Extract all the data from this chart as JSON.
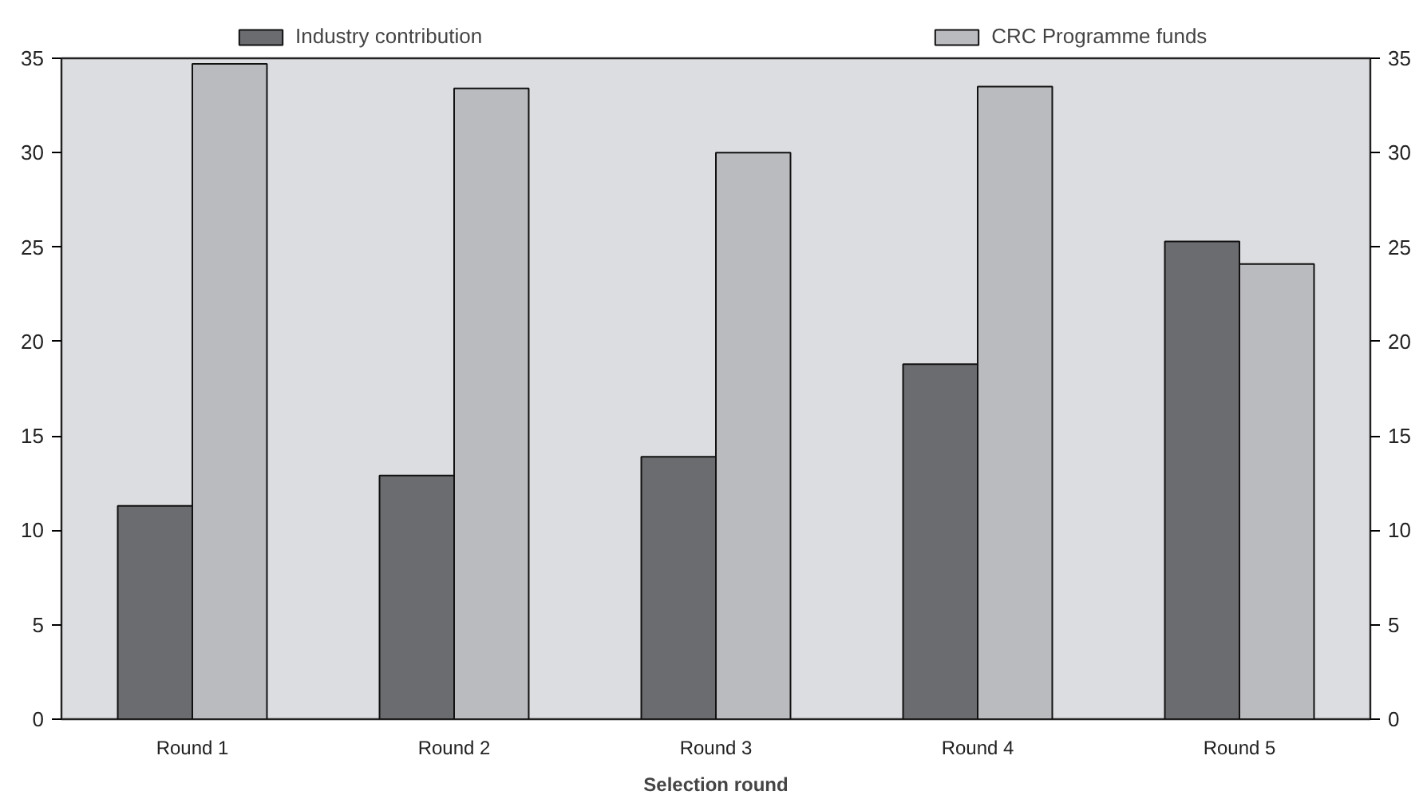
{
  "chart_data": {
    "type": "bar",
    "xlabel": "Selection round",
    "categories": [
      "Round 1",
      "Round 2",
      "Round 3",
      "Round 4",
      "Round 5"
    ],
    "series": [
      {
        "name": "Industry contribution",
        "color": "#6b6c70",
        "values": [
          11.3,
          12.9,
          13.9,
          18.8,
          25.3
        ]
      },
      {
        "name": "CRC Programme funds",
        "color": "#babbbf",
        "values": [
          34.7,
          33.4,
          30.0,
          33.5,
          24.1
        ]
      }
    ],
    "ylim": [
      0,
      35
    ],
    "yticks": [
      0,
      5,
      10,
      15,
      20,
      25,
      30,
      35
    ],
    "y2lim": [
      0,
      35
    ],
    "y2ticks": [
      0,
      5,
      10,
      15,
      20,
      25,
      30,
      35
    ],
    "grid": false,
    "legend": "top"
  }
}
